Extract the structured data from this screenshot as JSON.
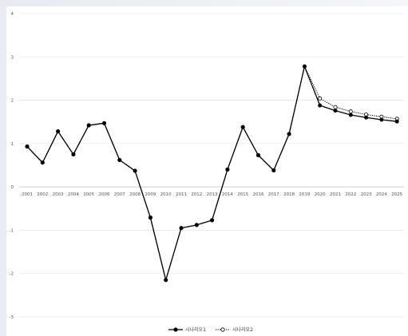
{
  "chart_data": {
    "type": "line",
    "title": "",
    "xlabel": "",
    "ylabel": "",
    "ylim": [
      -3,
      4
    ],
    "yticks": [
      "4",
      "3",
      "2",
      "1",
      "0",
      "-1",
      "-2",
      "-3"
    ],
    "categories": [
      "2001",
      "2002",
      "2003",
      "2004",
      "2005",
      "2006",
      "2007",
      "2008",
      "2009",
      "2010",
      "2011",
      "2012",
      "2013",
      "2014",
      "2015",
      "2016",
      "2017",
      "2018",
      "2019",
      "2020",
      "2021",
      "2022",
      "2023",
      "2024",
      "2025"
    ],
    "series": [
      {
        "name": "시나리오1",
        "values": [
          0.93,
          0.56,
          1.28,
          0.75,
          1.42,
          1.47,
          0.62,
          0.37,
          -0.71,
          -2.15,
          -0.95,
          -0.88,
          -0.77,
          0.4,
          1.38,
          0.73,
          0.38,
          1.22,
          2.78,
          1.88,
          1.76,
          1.66,
          1.6,
          1.55,
          1.51
        ],
        "color": "#000000",
        "marker": "filled-circle",
        "style": "solid"
      },
      {
        "name": "시나리오2",
        "values": [
          0.93,
          0.56,
          1.28,
          0.75,
          1.42,
          1.47,
          0.62,
          0.37,
          -0.71,
          -2.15,
          -0.95,
          -0.88,
          -0.77,
          0.4,
          1.38,
          0.73,
          0.38,
          1.22,
          2.78,
          2.04,
          1.84,
          1.74,
          1.67,
          1.62,
          1.57
        ],
        "color": "#000000",
        "marker": "open-circle",
        "style": "dotted"
      }
    ],
    "grid": true,
    "legend": "bottom"
  }
}
